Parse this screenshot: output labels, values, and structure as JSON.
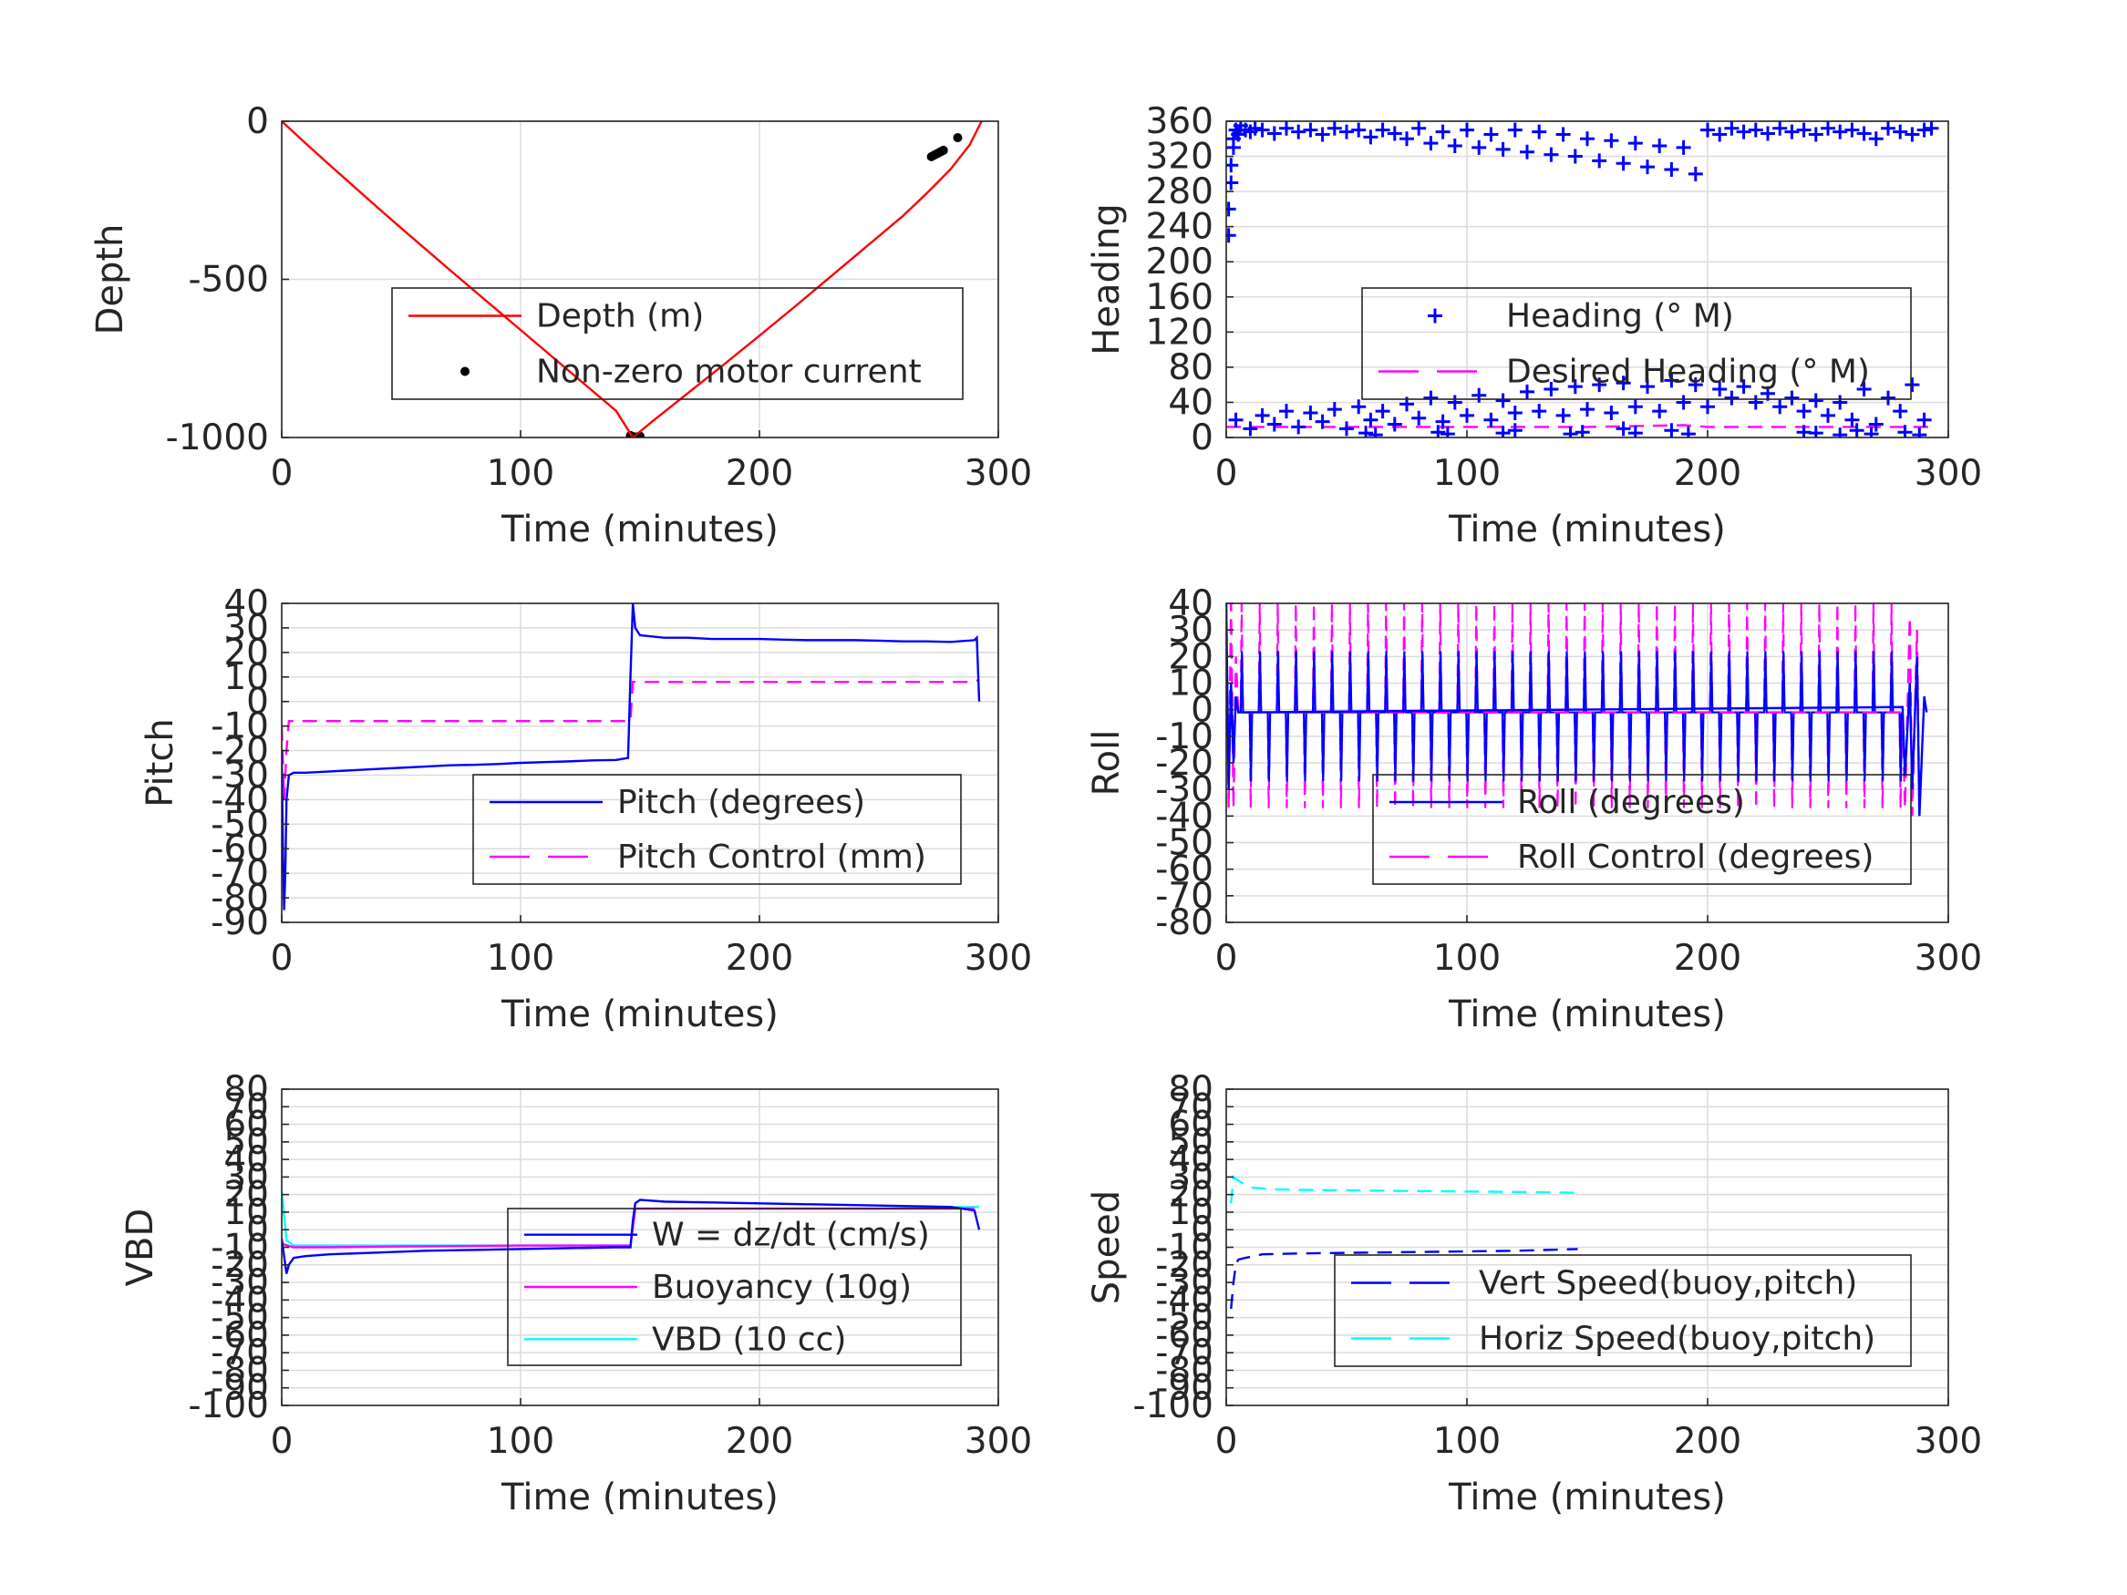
{
  "chart_data": [
    {
      "type": "line",
      "xlabel": "Time (minutes)",
      "ylabel": "Depth",
      "xlim": [
        0,
        300
      ],
      "ylim": [
        -1000,
        0
      ],
      "xticks": [
        0,
        100,
        200,
        300
      ],
      "yticks": [
        -1000,
        -500,
        0
      ],
      "ytick_labels": [
        "-1000",
        "-500",
        "0"
      ],
      "grid": true,
      "legend_position": "center-right",
      "series": [
        {
          "name": "Depth (m)",
          "style": "solid",
          "marker": "none",
          "color": "#ff0000",
          "x": [
            0,
            10,
            20,
            30,
            40,
            50,
            60,
            70,
            80,
            90,
            100,
            110,
            120,
            130,
            140,
            147,
            155,
            170,
            185,
            200,
            215,
            230,
            245,
            260,
            270,
            280,
            288,
            293
          ],
          "y": [
            0,
            -70,
            -138,
            -205,
            -272,
            -338,
            -403,
            -468,
            -532,
            -596,
            -660,
            -724,
            -788,
            -852,
            -916,
            -1000,
            -950,
            -860,
            -770,
            -678,
            -585,
            -490,
            -395,
            -300,
            -228,
            -152,
            -75,
            0
          ]
        },
        {
          "name": "Non-zero motor current",
          "style": "none",
          "marker": "dot",
          "color": "#000000",
          "x": [
            146,
            147,
            148,
            149,
            150,
            272,
            273,
            274,
            275,
            276,
            277,
            283
          ],
          "y": [
            -994,
            -997,
            -999,
            -998,
            -996,
            -112,
            -108,
            -104,
            -100,
            -96,
            -92,
            -52
          ]
        }
      ]
    },
    {
      "type": "scatter",
      "xlabel": "Time (minutes)",
      "ylabel": "Heading",
      "xlim": [
        0,
        300
      ],
      "ylim": [
        0,
        360
      ],
      "xticks": [
        0,
        100,
        200,
        300
      ],
      "yticks": [
        0,
        40,
        80,
        120,
        160,
        200,
        240,
        280,
        320,
        360
      ],
      "ytick_labels": [
        "0",
        "40",
        "80",
        "120",
        "160",
        "200",
        "240",
        "280",
        "320",
        "360"
      ],
      "grid": true,
      "legend_position": "center-right",
      "series": [
        {
          "name": "Heading (° M)",
          "style": "none",
          "marker": "plus",
          "color": "#0000ff",
          "x": [
            1,
            1,
            2,
            2,
            3,
            3,
            4,
            5,
            6,
            8,
            10,
            12,
            15,
            20,
            25,
            30,
            35,
            40,
            45,
            50,
            55,
            60,
            65,
            70,
            75,
            80,
            85,
            90,
            95,
            100,
            105,
            110,
            115,
            120,
            125,
            130,
            135,
            140,
            145,
            150,
            155,
            160,
            165,
            170,
            175,
            180,
            185,
            190,
            195,
            200,
            205,
            210,
            215,
            220,
            225,
            230,
            235,
            240,
            245,
            250,
            255,
            260,
            265,
            270,
            275,
            280,
            285,
            290,
            293,
            4,
            10,
            15,
            20,
            25,
            30,
            35,
            40,
            45,
            50,
            55,
            60,
            65,
            70,
            75,
            80,
            85,
            90,
            95,
            100,
            105,
            110,
            115,
            120,
            125,
            130,
            135,
            140,
            145,
            150,
            155,
            160,
            165,
            170,
            175,
            180,
            185,
            190,
            195,
            200,
            205,
            210,
            215,
            220,
            225,
            230,
            235,
            240,
            245,
            250,
            255,
            260,
            265,
            270,
            275,
            280,
            285,
            290,
            58,
            62,
            88,
            92,
            115,
            120,
            143,
            148,
            165,
            170,
            185,
            192,
            240,
            245,
            255,
            262,
            268,
            282,
            288
          ],
          "y": [
            230,
            260,
            290,
            310,
            330,
            340,
            350,
            345,
            355,
            350,
            348,
            352,
            350,
            346,
            352,
            348,
            350,
            345,
            352,
            348,
            350,
            342,
            350,
            346,
            340,
            352,
            335,
            348,
            332,
            350,
            330,
            345,
            328,
            350,
            325,
            348,
            322,
            345,
            320,
            340,
            315,
            338,
            312,
            335,
            308,
            332,
            305,
            330,
            300,
            350,
            345,
            352,
            348,
            350,
            346,
            352,
            348,
            350,
            345,
            352,
            348,
            350,
            346,
            340,
            352,
            348,
            345,
            350,
            352,
            20,
            10,
            25,
            15,
            30,
            12,
            28,
            18,
            32,
            10,
            35,
            20,
            30,
            15,
            38,
            22,
            45,
            18,
            40,
            25,
            48,
            20,
            42,
            28,
            52,
            30,
            55,
            25,
            58,
            32,
            60,
            28,
            62,
            35,
            58,
            30,
            65,
            40,
            60,
            35,
            55,
            45,
            58,
            40,
            50,
            35,
            45,
            30,
            42,
            25,
            40,
            20,
            55,
            15,
            45,
            30,
            60,
            20,
            5,
            3,
            6,
            4,
            5,
            8,
            4,
            6,
            10,
            5,
            8,
            4,
            6,
            5,
            3,
            8,
            4,
            6,
            3
          ]
        },
        {
          "name": "Desired Heading (° M)",
          "style": "dashed",
          "marker": "none",
          "color": "#ff00ff",
          "x": [
            0,
            50,
            100,
            150,
            190,
            200,
            250,
            293
          ],
          "y": [
            12,
            12,
            12,
            12,
            14,
            12,
            12,
            12
          ]
        }
      ]
    },
    {
      "type": "line",
      "xlabel": "Time (minutes)",
      "ylabel": "Pitch",
      "xlim": [
        0,
        300
      ],
      "ylim": [
        -90,
        40
      ],
      "xticks": [
        0,
        100,
        200,
        300
      ],
      "yticks": [
        -90,
        -80,
        -70,
        -60,
        -50,
        -40,
        -30,
        -20,
        -10,
        0,
        10,
        20,
        30,
        40
      ],
      "ytick_labels": [
        "-90",
        "-80",
        "-70",
        "-60",
        "-50",
        "-40",
        "-30",
        "-20",
        "-10",
        "0",
        "10",
        "20",
        "30",
        "40"
      ],
      "grid": true,
      "legend_position": "bottom-right",
      "series": [
        {
          "name": "Pitch (degrees)",
          "style": "solid",
          "marker": "none",
          "color": "#0000ff",
          "x": [
            0,
            0.5,
            1,
            1.5,
            2,
            3,
            5,
            10,
            20,
            30,
            40,
            50,
            60,
            70,
            80,
            90,
            100,
            110,
            120,
            130,
            140,
            145,
            146,
            147,
            148,
            150,
            155,
            160,
            170,
            180,
            190,
            200,
            210,
            220,
            230,
            240,
            250,
            260,
            270,
            280,
            290,
            291,
            292
          ],
          "y": [
            -20,
            -60,
            -85,
            -70,
            -40,
            -30,
            -29,
            -29,
            -28.5,
            -28,
            -27.5,
            -27,
            -26.5,
            -26,
            -25.8,
            -25.5,
            -25,
            -24.7,
            -24.4,
            -24,
            -23.8,
            -23,
            10,
            40,
            30,
            27,
            26.5,
            26,
            26,
            25.5,
            25.5,
            25.5,
            25.2,
            25,
            25,
            25,
            24.8,
            24.5,
            24.5,
            24.3,
            25,
            26,
            0
          ]
        },
        {
          "name": "Pitch Control (mm)",
          "style": "dashed",
          "marker": "none",
          "color": "#ff00ff",
          "x": [
            0,
            1,
            2,
            3,
            50,
            100,
            140,
            146,
            147,
            200,
            250,
            290,
            292
          ],
          "y": [
            -10,
            -40,
            -20,
            -8,
            -8,
            -8,
            -8,
            -8,
            8,
            8,
            8,
            8,
            9
          ]
        }
      ]
    },
    {
      "type": "line",
      "xlabel": "Time (minutes)",
      "ylabel": "Roll",
      "xlim": [
        0,
        300
      ],
      "ylim": [
        -80,
        40
      ],
      "xticks": [
        0,
        100,
        200,
        300
      ],
      "yticks": [
        -80,
        -70,
        -60,
        -50,
        -40,
        -30,
        -20,
        -10,
        0,
        10,
        20,
        30,
        40
      ],
      "ytick_labels": [
        "-80",
        "-70",
        "-60",
        "-50",
        "-40",
        "-30",
        "-20",
        "-10",
        "0",
        "10",
        "20",
        "30",
        "40"
      ],
      "grid": true,
      "legend_position": "bottom-right",
      "oscillation": {
        "start": 6,
        "end": 280,
        "period": 7.5,
        "roll_baseline": -1,
        "roll_spike_up": 22,
        "roll_spike_down": -27,
        "control_spike_up": 40,
        "control_spike_down": -37
      },
      "series": [
        {
          "name": "Roll (degrees)",
          "style": "solid",
          "marker": "none",
          "color": "#0000ff",
          "x": [
            0,
            1,
            2,
            3,
            4,
            5,
            281,
            282,
            284,
            285,
            287,
            288,
            290,
            291
          ],
          "y": [
            40,
            -30,
            10,
            -20,
            5,
            -1,
            1,
            -25,
            10,
            -30,
            20,
            -40,
            5,
            -1
          ]
        },
        {
          "name": "Roll Control (degrees)",
          "style": "dashed",
          "marker": "none",
          "color": "#ff00ff",
          "x": [
            0,
            1,
            2,
            3,
            4,
            5,
            281,
            282,
            284,
            285,
            287,
            288
          ],
          "y": [
            40,
            -37,
            40,
            -37,
            20,
            -1,
            -1,
            -37,
            35,
            -40,
            30,
            -40
          ]
        }
      ]
    },
    {
      "type": "line",
      "xlabel": "Time (minutes)",
      "ylabel": "VBD",
      "xlim": [
        0,
        300
      ],
      "ylim": [
        -100,
        80
      ],
      "xticks": [
        0,
        100,
        200,
        300
      ],
      "yticks": [
        -100,
        -90,
        -80,
        -70,
        -60,
        -50,
        -40,
        -30,
        -20,
        -10,
        0,
        10,
        20,
        30,
        40,
        50,
        60,
        70,
        80
      ],
      "ytick_labels": [
        "-100",
        "-90",
        "-80",
        "-70",
        "-60",
        "-50",
        "-40",
        "-30",
        "-20",
        "-10",
        "0",
        "10",
        "20",
        "30",
        "40",
        "50",
        "60",
        "70",
        "80"
      ],
      "grid": true,
      "legend_position": "center-right",
      "series": [
        {
          "name": "W = dz/dt (cm/s)",
          "style": "solid",
          "marker": "none",
          "color": "#0000ff",
          "x": [
            0,
            1,
            2,
            3,
            5,
            10,
            20,
            40,
            60,
            80,
            100,
            120,
            140,
            146,
            147,
            148,
            150,
            160,
            180,
            200,
            220,
            240,
            260,
            280,
            290,
            292
          ],
          "y": [
            -5,
            -15,
            -25,
            -20,
            -16,
            -15,
            -14,
            -13,
            -12,
            -11.5,
            -11,
            -10.5,
            -10,
            -10,
            5,
            15,
            17,
            16,
            15.5,
            15,
            14.5,
            14,
            13.5,
            13,
            11,
            0
          ]
        },
        {
          "name": "Buoyancy (10g)",
          "style": "solid",
          "marker": "none",
          "color": "#ff00ff",
          "x": [
            0,
            5,
            20,
            50,
            100,
            146,
            148,
            200,
            250,
            290
          ],
          "y": [
            -8,
            -10,
            -10,
            -9.5,
            -9,
            -9,
            12,
            12,
            12,
            12
          ]
        },
        {
          "name": "VBD (10 cc)",
          "style": "solid",
          "marker": "none",
          "color": "#00ffff",
          "x": [
            0,
            2,
            5,
            50,
            100,
            146,
            148,
            200,
            250,
            290,
            292
          ],
          "y": [
            22,
            -6,
            -9,
            -9,
            -9,
            -9,
            12,
            12,
            12,
            13,
            13
          ]
        }
      ]
    },
    {
      "type": "line",
      "xlabel": "Time (minutes)",
      "ylabel": "Speed",
      "xlim": [
        0,
        300
      ],
      "ylim": [
        -100,
        80
      ],
      "xticks": [
        0,
        100,
        200,
        300
      ],
      "yticks": [
        -100,
        -90,
        -80,
        -70,
        -60,
        -50,
        -40,
        -30,
        -20,
        -10,
        0,
        10,
        20,
        30,
        40,
        50,
        60,
        70,
        80
      ],
      "ytick_labels": [
        "-100",
        "-90",
        "-80",
        "-70",
        "-60",
        "-50",
        "-40",
        "-30",
        "-20",
        "-10",
        "0",
        "10",
        "20",
        "30",
        "40",
        "50",
        "60",
        "70",
        "80"
      ],
      "grid": true,
      "legend_position": "center-right",
      "series": [
        {
          "name": "Vert Speed(buoy,pitch)",
          "style": "dashed",
          "marker": "none",
          "color": "#0000ff",
          "x": [
            2,
            3,
            4,
            5,
            8,
            15,
            30,
            60,
            90,
            120,
            146
          ],
          "y": [
            -45,
            -30,
            -20,
            -17,
            -16,
            -14,
            -13.5,
            -13,
            -12.5,
            -12,
            -11
          ]
        },
        {
          "name": "Horiz Speed(buoy,pitch)",
          "style": "dashed",
          "marker": "none",
          "color": "#00ffff",
          "x": [
            2,
            3,
            5,
            10,
            20,
            40,
            80,
            120,
            146
          ],
          "y": [
            15,
            30,
            28,
            24,
            23,
            22.5,
            22,
            21.5,
            21
          ]
        }
      ]
    }
  ]
}
